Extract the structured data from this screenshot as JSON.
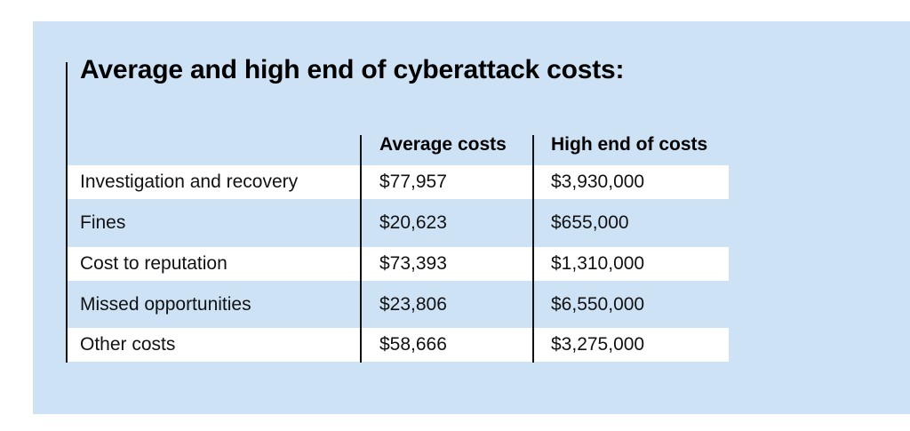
{
  "title": "Average and high end of cyberattack costs:",
  "table": {
    "headers": [
      "",
      "Average costs",
      "High end of costs"
    ],
    "rows": [
      [
        "Investigation and recovery",
        "$77,957",
        "$3,930,000"
      ],
      [
        "Fines",
        "$20,623",
        "$655,000"
      ],
      [
        "Cost to reputation",
        "$73,393",
        "$1,310,000"
      ],
      [
        "Missed opportunities",
        "$23,806",
        "$6,550,000"
      ],
      [
        "Other costs",
        "$58,666",
        "$3,275,000"
      ]
    ]
  },
  "colors": {
    "panel_background": "#cde3f5",
    "alternate_row": "#ffffff",
    "text": "#111111"
  }
}
